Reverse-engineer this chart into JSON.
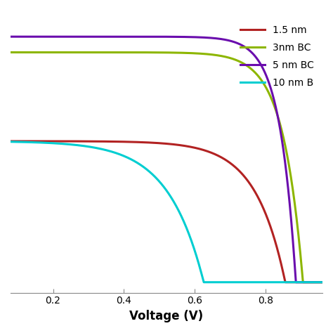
{
  "title": "",
  "xlabel": "Voltage (V)",
  "ylabel": "",
  "xlim": [
    0.08,
    0.96
  ],
  "ylim": [
    -0.02,
    0.52
  ],
  "xticks": [
    0.2,
    0.4,
    0.6,
    0.8
  ],
  "legend_labels": [
    "1.5 nm",
    "3nm BC",
    "5 nm BC",
    "10 nm B"
  ],
  "colors": [
    "#b22222",
    "#8db600",
    "#6a0dad",
    "#00ced1"
  ],
  "linewidth": 2.2,
  "curves": {
    "red": {
      "Voc": 0.855,
      "Isc": 0.27,
      "n": 12,
      "Vstart": 0.08
    },
    "green": {
      "Voc": 0.905,
      "Isc": 0.44,
      "n": 18,
      "Vstart": 0.08
    },
    "purple": {
      "Voc": 0.885,
      "Isc": 0.47,
      "n": 22,
      "Vstart": 0.08
    },
    "cyan": {
      "Voc": 0.625,
      "Isc": 0.27,
      "n": 10,
      "Vstart": 0.08
    }
  }
}
